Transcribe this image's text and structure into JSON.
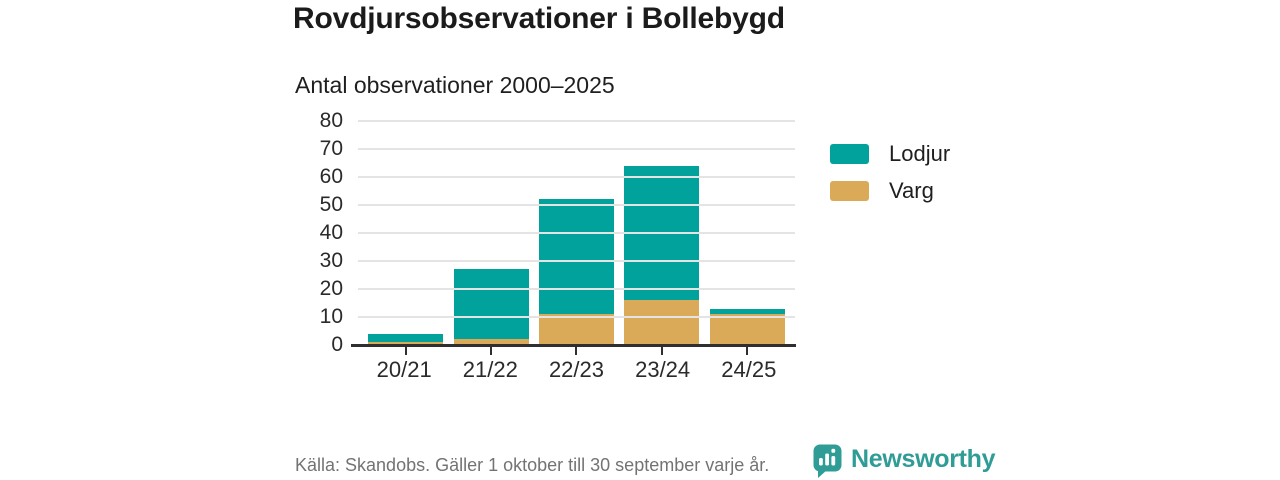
{
  "header": {
    "title": "Rovdjursobservationer i Bollebygd",
    "subtitle": "Antal observationer 2000–2025"
  },
  "chart_data": {
    "type": "bar",
    "stacked": true,
    "title": "Rovdjursobservationer i Bollebygd",
    "subtitle": "Antal observationer 2000–2025",
    "categories": [
      "20/21",
      "21/22",
      "22/23",
      "23/24",
      "24/25"
    ],
    "series_order": "bottom-to-top",
    "series": [
      {
        "name": "Varg",
        "color": "#daaa58",
        "values": [
          1,
          2,
          11,
          16,
          11
        ]
      },
      {
        "name": "Lodjur",
        "color": "#00a29b",
        "values": [
          3,
          25,
          41,
          48,
          2
        ]
      }
    ],
    "totals": [
      4,
      27,
      52,
      64,
      13
    ],
    "xlabel": "",
    "ylabel": "",
    "ylim": [
      0,
      80
    ],
    "yticks": [
      0,
      10,
      20,
      30,
      40,
      50,
      60,
      70,
      80
    ],
    "grid": true,
    "legend_position": "right"
  },
  "legend": {
    "items": [
      {
        "label": "Lodjur",
        "color": "#00a29b"
      },
      {
        "label": "Varg",
        "color": "#daaa58"
      }
    ]
  },
  "footer": {
    "source": "Källa: Skandobs. Gäller 1 oktober till 30 september varje år.",
    "brand": "Newsworthy"
  },
  "colors": {
    "lodjur": "#00a29b",
    "varg": "#daaa58",
    "axis": "#2f2f2f",
    "gridline": "#e4e4e4",
    "brand_teal": "#2f9c96",
    "source_text": "#737373"
  }
}
